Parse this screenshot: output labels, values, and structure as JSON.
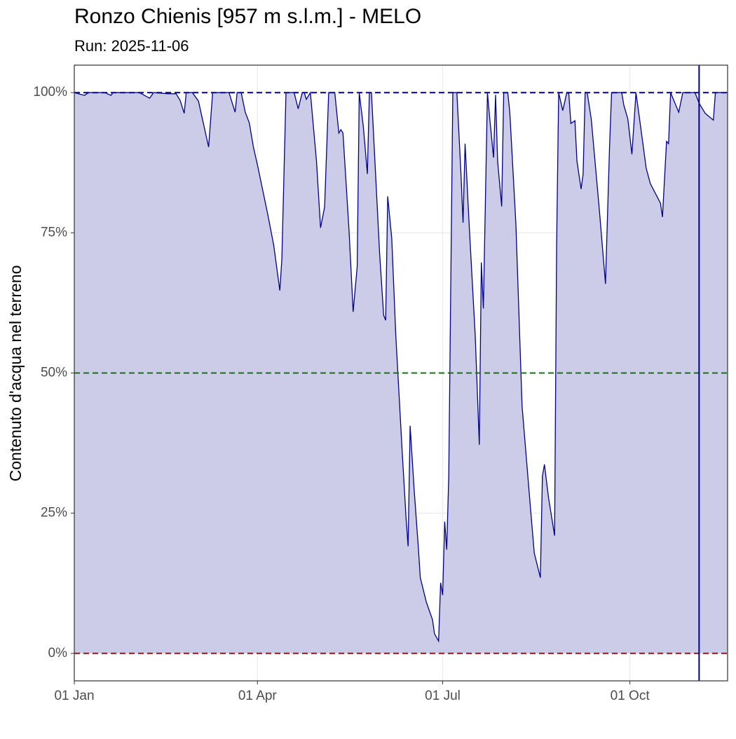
{
  "chart_data": {
    "type": "area",
    "title": "Ronzo Chienis [957 m s.l.m.] - MELO",
    "subtitle": "Run: 2025-11-06",
    "y_label": "Contenuto d'acqua nel terreno",
    "x": [
      0,
      5,
      7,
      15,
      18,
      19,
      32,
      37,
      39,
      46,
      50,
      52,
      54,
      55,
      58,
      61,
      66,
      68,
      76,
      79,
      80,
      82,
      84,
      86,
      88,
      90,
      95,
      98,
      101,
      102,
      104,
      108,
      110,
      112,
      113,
      114,
      116,
      119,
      121,
      123,
      125,
      128,
      130,
      131,
      132,
      135,
      137,
      139,
      140,
      142,
      144,
      145,
      146,
      150,
      152,
      153,
      154,
      156,
      158,
      161,
      163,
      164,
      165,
      167,
      169,
      170,
      173,
      176,
      177,
      179,
      180,
      181,
      182,
      183,
      184,
      186,
      188,
      190,
      191,
      192,
      194,
      197,
      199,
      200,
      201,
      203,
      204,
      206,
      207,
      208,
      210,
      211,
      213,
      214,
      217,
      220,
      224,
      226,
      229,
      230,
      231,
      233,
      236,
      237,
      238,
      240,
      242,
      243,
      244,
      246,
      247,
      249,
      250,
      251,
      252,
      254,
      258,
      261,
      263,
      264,
      269,
      270,
      272,
      274,
      276,
      278,
      281,
      283,
      288,
      289,
      291,
      292,
      293,
      297,
      299,
      305,
      307,
      310,
      314,
      315,
      321
    ],
    "values": [
      100,
      99.5,
      100,
      100,
      99.5,
      100,
      100,
      99,
      100,
      99.8,
      99.8,
      98.6,
      96.3,
      100,
      100,
      98.5,
      90.3,
      100,
      100,
      96.5,
      100,
      100,
      96.5,
      94.6,
      90.3,
      87.1,
      78.4,
      72.8,
      64.7,
      70.3,
      100,
      100,
      97.1,
      100,
      100,
      98.8,
      100,
      87.8,
      75.9,
      79.6,
      100,
      100,
      92.8,
      93.4,
      92.8,
      75.3,
      60.9,
      69,
      100,
      94,
      85.5,
      100,
      100,
      71.5,
      60.3,
      59.4,
      81.5,
      74,
      56.6,
      36.6,
      24.1,
      19.1,
      40.6,
      29.1,
      19.1,
      13.5,
      9.1,
      6,
      3.5,
      2.2,
      12.6,
      10.4,
      23.5,
      18.5,
      31.6,
      100,
      100,
      85.3,
      76.8,
      90.9,
      76.5,
      56.6,
      37.2,
      69.7,
      61.5,
      100,
      95.9,
      88.4,
      99.6,
      87.8,
      79.7,
      100,
      100,
      96.5,
      76.5,
      44.1,
      26.5,
      17.9,
      13.5,
      31.6,
      33.7,
      27.8,
      21,
      72.8,
      100,
      96.8,
      100,
      99.8,
      94.5,
      95,
      87.8,
      82.8,
      85.5,
      100,
      100,
      95.3,
      79,
      65.9,
      90.3,
      100,
      100,
      97.8,
      95.3,
      89,
      100,
      94.6,
      86.5,
      83.8,
      80.3,
      77.8,
      91.3,
      90.9,
      100,
      96.5,
      100,
      100,
      98.1,
      96.3,
      95.1,
      100,
      100
    ],
    "line_color": "#00008b",
    "fill_color": "#cccce8",
    "xlim": [
      0,
      321
    ],
    "xticks": [
      {
        "value": 0,
        "label": "01 Jan"
      },
      {
        "value": 90,
        "label": "01 Apr"
      },
      {
        "value": 181,
        "label": "01 Jul"
      },
      {
        "value": 273,
        "label": "01 Oct"
      }
    ],
    "ylim": [
      -4.9,
      104.9
    ],
    "yticks": [
      {
        "value": 0,
        "label": "0%"
      },
      {
        "value": 25,
        "label": "25%"
      },
      {
        "value": 50,
        "label": "50%"
      },
      {
        "value": 75,
        "label": "75%"
      },
      {
        "value": 100,
        "label": "100%"
      }
    ],
    "grid": true,
    "hlines": [
      {
        "value": 100,
        "color": "#00008b"
      },
      {
        "value": 50,
        "color": "#1a6e1a"
      },
      {
        "value": 0,
        "color": "#8b1a1a"
      }
    ],
    "vline": {
      "value": 307,
      "color": "#00008b"
    }
  }
}
